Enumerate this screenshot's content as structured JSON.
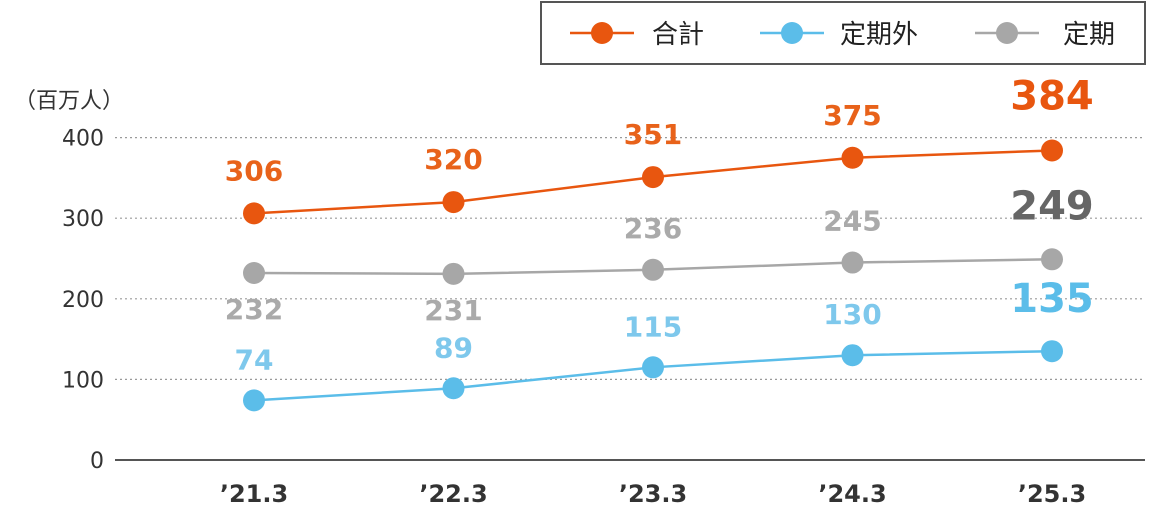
{
  "chart_data": {
    "type": "line",
    "unit_label": "（百万人）",
    "categories": [
      "’21.3",
      "’22.3",
      "’23.3",
      "’24.3",
      "’25.3"
    ],
    "y_ticks": [
      "0",
      "100",
      "200",
      "300",
      "400"
    ],
    "ylim": [
      0,
      420
    ],
    "grid": "horizontal-dotted",
    "legend_position": "top-right",
    "series": [
      {
        "name": "合計",
        "color": "#e8560f",
        "label_color": "#e8621a",
        "values": [
          306,
          320,
          351,
          375,
          384
        ]
      },
      {
        "name": "定期外",
        "color": "#5bbde9",
        "label_color": "#7ec8ec",
        "values": [
          74,
          89,
          115,
          130,
          135
        ]
      },
      {
        "name": "定期",
        "color": "#a7a7a7",
        "label_color": "#aaaaaa",
        "last_label_color": "#666666",
        "values": [
          232,
          231,
          236,
          245,
          249
        ]
      }
    ]
  }
}
